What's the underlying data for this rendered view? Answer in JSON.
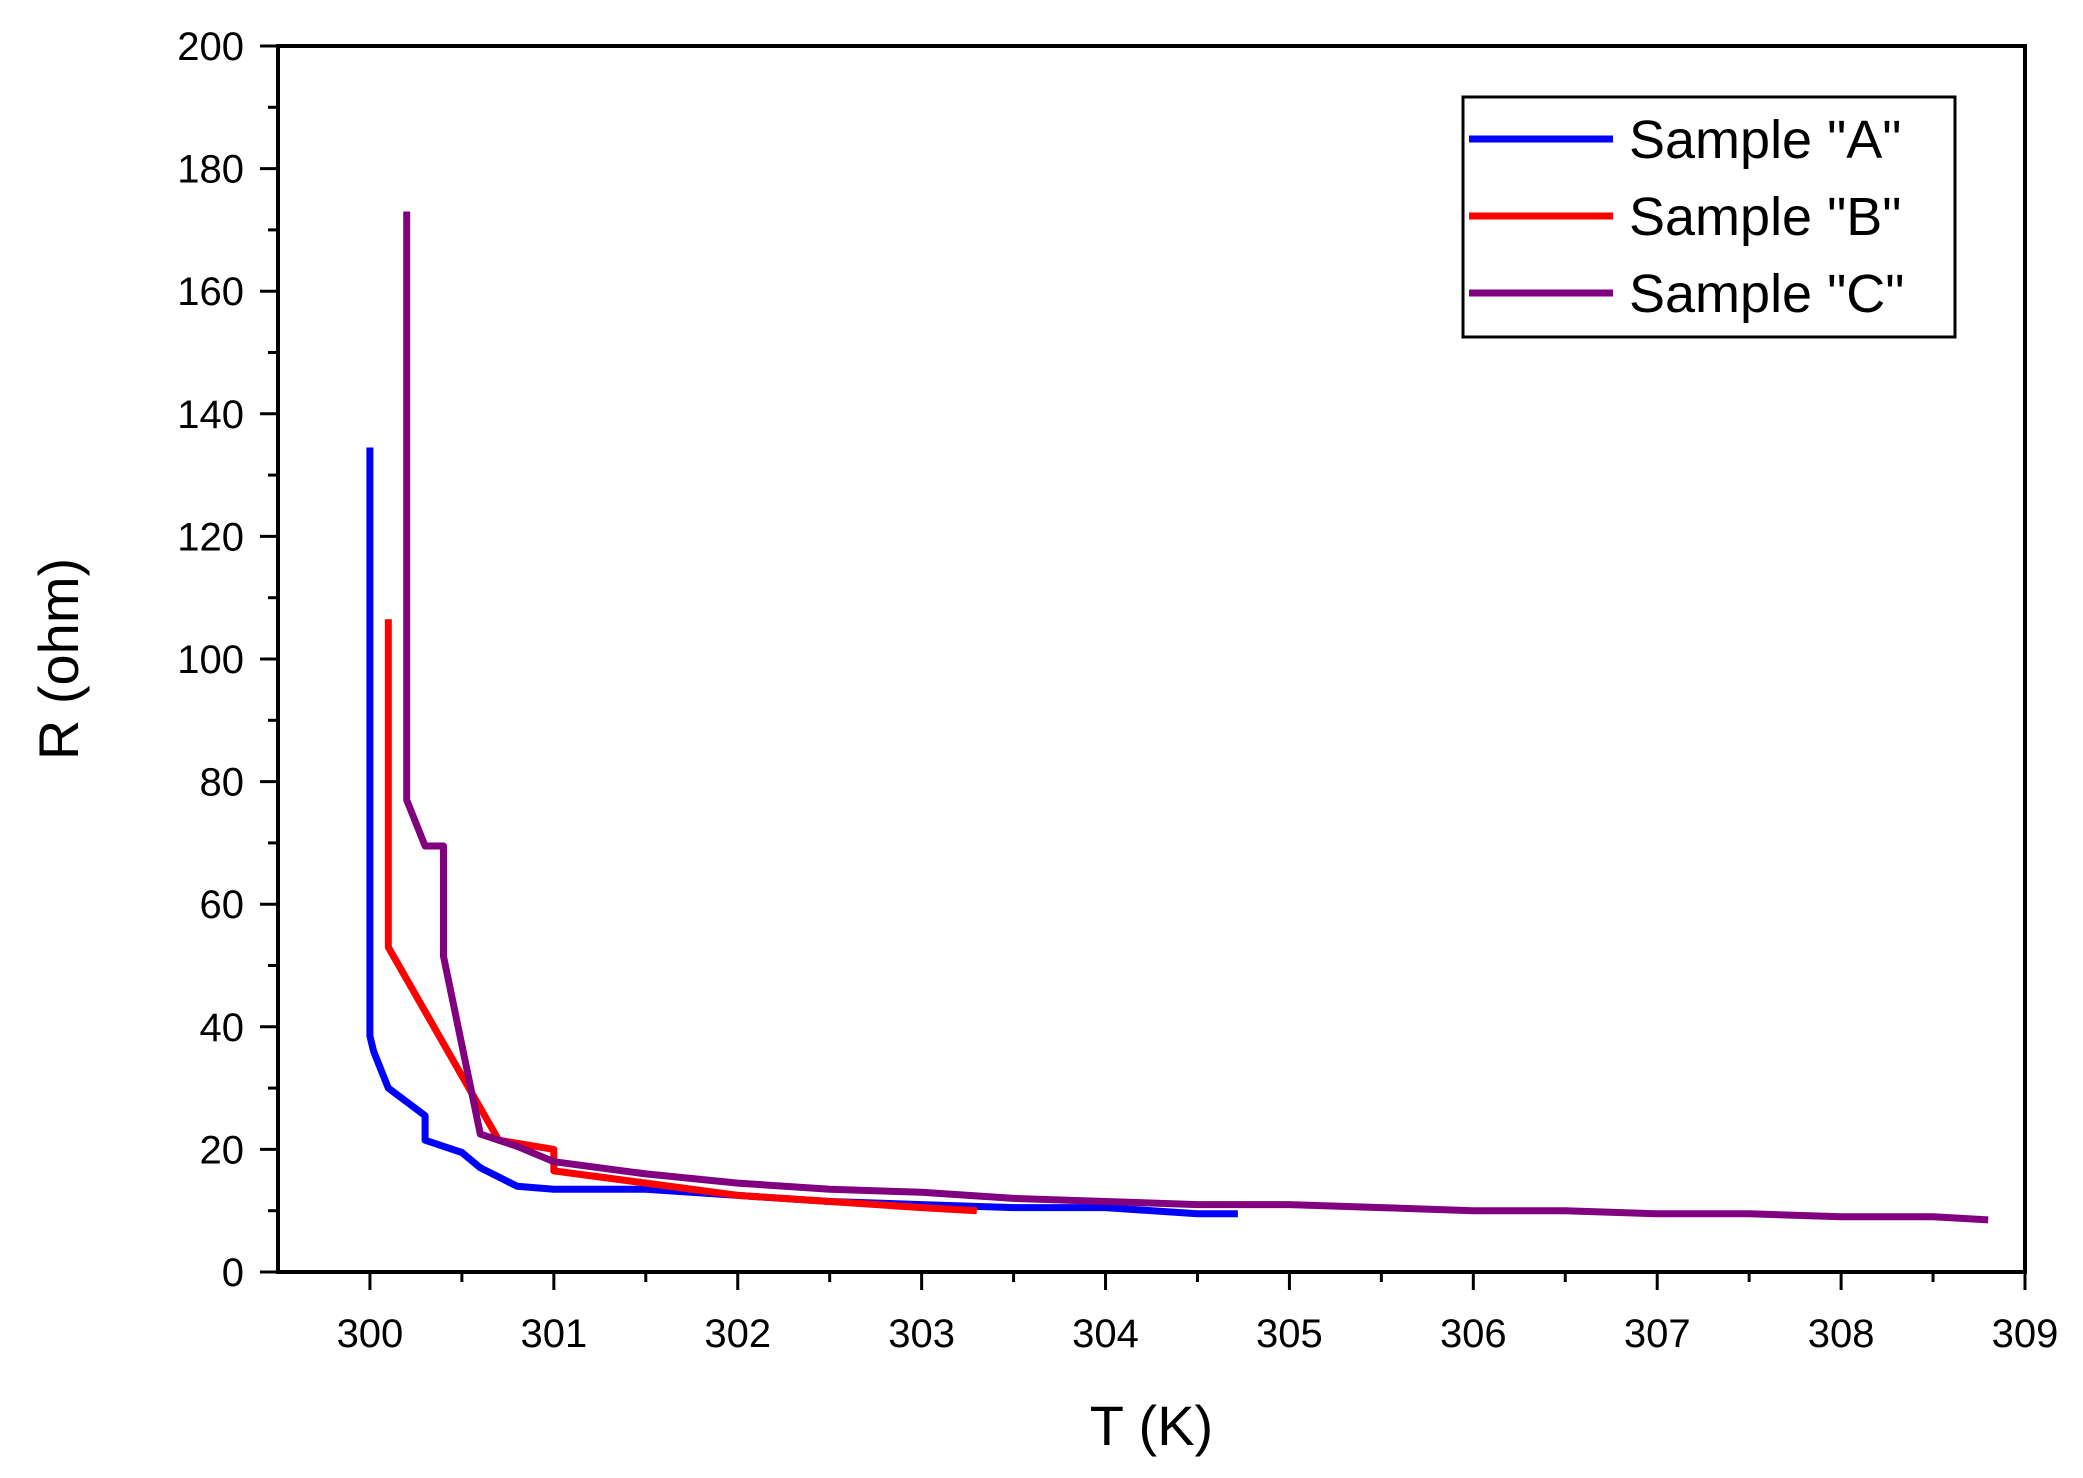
{
  "chart_data": {
    "type": "line",
    "title": "",
    "xlabel": "T (K)",
    "ylabel": "R (ohm)",
    "xlim": [
      299.5,
      309
    ],
    "ylim": [
      0,
      200
    ],
    "xticks": [
      300,
      301,
      302,
      303,
      304,
      305,
      306,
      307,
      308,
      309
    ],
    "yticks": [
      0,
      20,
      40,
      60,
      80,
      100,
      120,
      140,
      160,
      180,
      200
    ],
    "grid": false,
    "legend_position": "top-right",
    "series": [
      {
        "name": "Sample \"A\"",
        "color": "#0000ff",
        "x": [
          300.0,
          300.0,
          300.02,
          300.1,
          300.3,
          300.3,
          300.5,
          300.6,
          300.8,
          301.0,
          301.5,
          302.0,
          302.5,
          303.0,
          303.5,
          304.0,
          304.5,
          304.72
        ],
        "y": [
          134.5,
          38.5,
          36,
          30,
          25.5,
          21.5,
          19.5,
          17,
          14,
          13.5,
          13.5,
          12.5,
          11.5,
          11,
          10.5,
          10.5,
          9.5,
          9.5
        ]
      },
      {
        "name": "Sample \"B\"",
        "color": "#ff0000",
        "x": [
          300.1,
          300.1,
          300.7,
          301.0,
          301.0,
          301.5,
          302.0,
          302.5,
          303.0,
          303.3
        ],
        "y": [
          106.5,
          53,
          21.5,
          20,
          16.5,
          14.5,
          12.5,
          11.5,
          10.5,
          10
        ]
      },
      {
        "name": "Sample \"C\"",
        "color": "#800080",
        "x": [
          300.2,
          300.2,
          300.3,
          300.4,
          300.4,
          300.6,
          300.8,
          301.0,
          301.5,
          302.0,
          302.5,
          303.0,
          303.5,
          304.0,
          304.5,
          305.0,
          305.5,
          306.0,
          306.5,
          307.0,
          307.5,
          308.0,
          308.5,
          308.8
        ],
        "y": [
          173,
          77,
          69.5,
          69.5,
          51.5,
          22.5,
          20.5,
          18,
          16,
          14.5,
          13.5,
          13,
          12,
          11.5,
          11,
          11,
          10.5,
          10,
          10,
          9.5,
          9.5,
          9,
          9,
          8.5
        ]
      }
    ]
  }
}
